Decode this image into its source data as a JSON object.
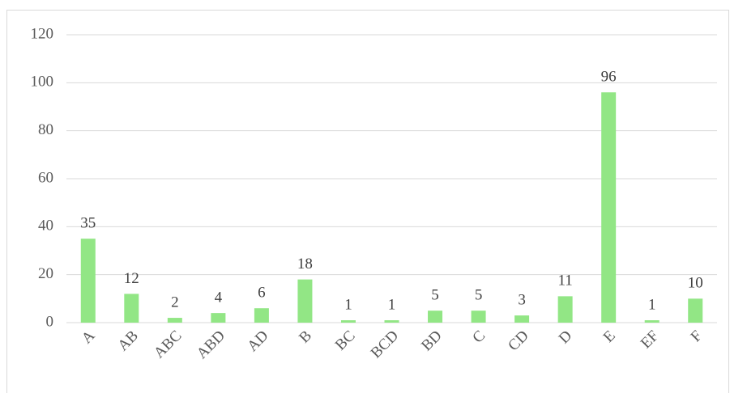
{
  "chart_data": {
    "type": "bar",
    "categories": [
      "A",
      "AB",
      "ABC",
      "ABD",
      "AD",
      "B",
      "BC",
      "BCD",
      "BD",
      "C",
      "CD",
      "D",
      "E",
      "EF",
      "F"
    ],
    "values": [
      35,
      12,
      2,
      4,
      6,
      18,
      1,
      1,
      5,
      5,
      3,
      11,
      96,
      1,
      10
    ],
    "color": "#92e685",
    "ylim": [
      0,
      120
    ],
    "yticks": [
      0,
      20,
      40,
      60,
      80,
      100,
      120
    ],
    "grid": true,
    "data_labels": true
  }
}
